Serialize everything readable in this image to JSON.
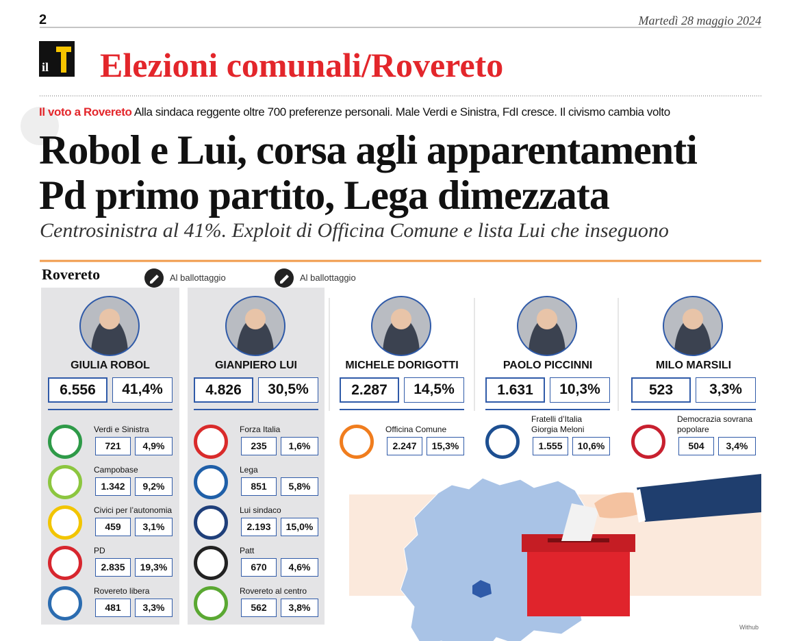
{
  "header": {
    "page_number": "2",
    "date": "Martedì 28 maggio 2024",
    "logo": "il"
  },
  "section_title": "Elezioni comunali/Rovereto",
  "kicker": {
    "label": "Il voto a Rovereto",
    "text": "Alla sindaca reggente oltre 700 preferenze personali. Male Verdi e Sinistra, FdI cresce. Il civismo cambia volto"
  },
  "headline": [
    "Robol e Lui, corsa agli apparentamenti",
    "Pd primo partito, Lega dimezzata"
  ],
  "subheadline": "Centrosinistra al 41%. Exploit di Officina Comune e lista Lui che inseguono",
  "infographic": {
    "city": "Rovereto",
    "credit": "Withub",
    "candidates": [
      {
        "name": "GIULIA ROBOL",
        "votes": "6.556",
        "percent": "41,4%",
        "status": "Al ballottaggio",
        "lists": [
          {
            "name": "Verdi e Sinistra",
            "votes": "721",
            "percent": "4,9%",
            "logo_color": "#2e9a48"
          },
          {
            "name": "Campobase",
            "votes": "1.342",
            "percent": "9,2%",
            "logo_color": "#8cc63f"
          },
          {
            "name": "Civici per l’autonomia",
            "votes": "459",
            "percent": "3,1%",
            "logo_color": "#f2c500"
          },
          {
            "name": "PD",
            "votes": "2.835",
            "percent": "19,3%",
            "logo_color": "#d7262e"
          },
          {
            "name": "Rovereto libera",
            "votes": "481",
            "percent": "3,3%",
            "logo_color": "#2b6cb0"
          }
        ]
      },
      {
        "name": "GIANPIERO LUI",
        "votes": "4.826",
        "percent": "30,5%",
        "status": "Al ballottaggio",
        "lists": [
          {
            "name": "Forza Italia",
            "votes": "235",
            "percent": "1,6%",
            "logo_color": "#d92b2b"
          },
          {
            "name": "Lega",
            "votes": "851",
            "percent": "5,8%",
            "logo_color": "#1f5fa8"
          },
          {
            "name": "Lui sindaco",
            "votes": "2.193",
            "percent": "15,0%",
            "logo_color": "#1f3f7a"
          },
          {
            "name": "Patt",
            "votes": "670",
            "percent": "4,6%",
            "logo_color": "#222222"
          },
          {
            "name": "Rovereto al centro",
            "votes": "562",
            "percent": "3,8%",
            "logo_color": "#5aa832"
          }
        ]
      },
      {
        "name": "MICHELE DORIGOTTI",
        "votes": "2.287",
        "percent": "14,5%",
        "lists": [
          {
            "name": "Officina Comune",
            "votes": "2.247",
            "percent": "15,3%",
            "logo_color": "#f07d1e"
          }
        ]
      },
      {
        "name": "PAOLO PICCINNI",
        "votes": "1.631",
        "percent": "10,3%",
        "lists": [
          {
            "name": [
              "Fratelli d’Italia",
              "Giorgia Meloni"
            ],
            "votes": "1.555",
            "percent": "10,6%",
            "logo_color": "#1d4f91"
          }
        ]
      },
      {
        "name": "MILO MARSILI",
        "votes": "523",
        "percent": "3,3%",
        "lists": [
          {
            "name": [
              "Democrazia sovrana",
              "popolare"
            ],
            "votes": "504",
            "percent": "3,4%",
            "logo_color": "#c8202f"
          }
        ]
      }
    ]
  }
}
